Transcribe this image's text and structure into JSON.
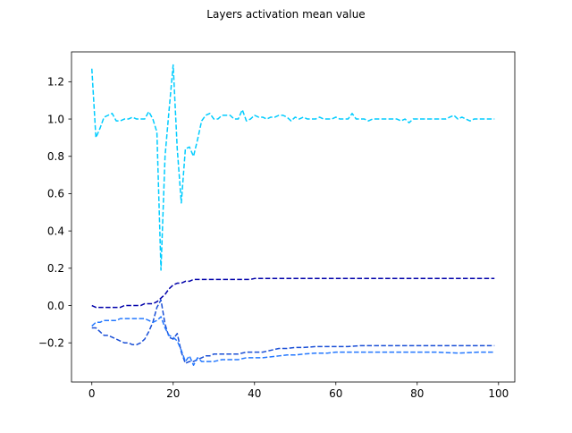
{
  "chart_data": {
    "type": "line",
    "title": "Layers activation mean value",
    "xlabel": "",
    "ylabel": "",
    "xlim": [
      -5,
      104
    ],
    "ylim": [
      -0.41,
      1.36
    ],
    "x_ticks": [
      0,
      20,
      40,
      60,
      80,
      100
    ],
    "x_tick_labels": [
      "0",
      "20",
      "40",
      "60",
      "80",
      "100"
    ],
    "y_ticks": [
      -0.2,
      0.0,
      0.2,
      0.4,
      0.6,
      0.8,
      1.0,
      1.2
    ],
    "y_tick_labels": [
      "−0.2",
      "0.0",
      "0.2",
      "0.4",
      "0.6",
      "0.8",
      "1.0",
      "1.2"
    ],
    "grid": false,
    "line_style": "dashed",
    "series": [
      {
        "color": "#00ccff",
        "points": [
          [
            0,
            1.27
          ],
          [
            1,
            0.9
          ],
          [
            2,
            0.95
          ],
          [
            3,
            1.01
          ],
          [
            4,
            1.02
          ],
          [
            5,
            1.03
          ],
          [
            6,
            0.99
          ],
          [
            7,
            0.99
          ],
          [
            8,
            1.0
          ],
          [
            9,
            1.0
          ],
          [
            10,
            1.01
          ],
          [
            11,
            1.0
          ],
          [
            12,
            1.0
          ],
          [
            13,
            1.0
          ],
          [
            14,
            1.04
          ],
          [
            15,
            1.0
          ],
          [
            16,
            0.93
          ],
          [
            17,
            0.19
          ],
          [
            18,
            0.8
          ],
          [
            19,
            1.05
          ],
          [
            20,
            1.29
          ],
          [
            21,
            0.84
          ],
          [
            22,
            0.55
          ],
          [
            23,
            0.84
          ],
          [
            24,
            0.85
          ],
          [
            25,
            0.8
          ],
          [
            26,
            0.89
          ],
          [
            27,
            0.99
          ],
          [
            28,
            1.02
          ],
          [
            29,
            1.03
          ],
          [
            30,
            1.0
          ],
          [
            31,
            1.0
          ],
          [
            32,
            1.02
          ],
          [
            33,
            1.02
          ],
          [
            34,
            1.02
          ],
          [
            35,
            1.0
          ],
          [
            36,
            1.0
          ],
          [
            37,
            1.05
          ],
          [
            38,
            0.99
          ],
          [
            39,
            1.0
          ],
          [
            40,
            1.02
          ],
          [
            41,
            1.01
          ],
          [
            42,
            1.01
          ],
          [
            43,
            1.0
          ],
          [
            44,
            1.01
          ],
          [
            45,
            1.01
          ],
          [
            46,
            1.02
          ],
          [
            47,
            1.02
          ],
          [
            48,
            1.01
          ],
          [
            49,
            0.99
          ],
          [
            50,
            1.01
          ],
          [
            51,
            1.0
          ],
          [
            52,
            1.01
          ],
          [
            53,
            1.0
          ],
          [
            54,
            1.0
          ],
          [
            55,
            1.0
          ],
          [
            56,
            1.01
          ],
          [
            57,
            1.0
          ],
          [
            58,
            1.0
          ],
          [
            59,
            1.0
          ],
          [
            60,
            1.01
          ],
          [
            61,
            1.0
          ],
          [
            62,
            1.0
          ],
          [
            63,
            1.0
          ],
          [
            64,
            1.03
          ],
          [
            65,
            1.0
          ],
          [
            66,
            1.0
          ],
          [
            67,
            1.0
          ],
          [
            68,
            0.99
          ],
          [
            69,
            1.0
          ],
          [
            70,
            1.0
          ],
          [
            71,
            1.0
          ],
          [
            72,
            1.0
          ],
          [
            73,
            1.0
          ],
          [
            74,
            1.0
          ],
          [
            75,
            1.0
          ],
          [
            76,
            0.99
          ],
          [
            77,
            1.0
          ],
          [
            78,
            0.98
          ],
          [
            79,
            1.0
          ],
          [
            80,
            1.0
          ],
          [
            81,
            1.0
          ],
          [
            82,
            1.0
          ],
          [
            83,
            1.0
          ],
          [
            84,
            1.0
          ],
          [
            85,
            1.0
          ],
          [
            86,
            1.0
          ],
          [
            87,
            1.0
          ],
          [
            88,
            1.01
          ],
          [
            89,
            1.02
          ],
          [
            90,
            1.0
          ],
          [
            91,
            1.01
          ],
          [
            92,
            1.0
          ],
          [
            93,
            0.99
          ],
          [
            94,
            1.0
          ],
          [
            95,
            1.0
          ],
          [
            96,
            1.0
          ],
          [
            97,
            1.0
          ],
          [
            98,
            1.0
          ],
          [
            99,
            1.0
          ]
        ]
      },
      {
        "color": "#0000aa",
        "points": [
          [
            0,
            0.0
          ],
          [
            1,
            -0.01
          ],
          [
            2,
            -0.01
          ],
          [
            3,
            -0.01
          ],
          [
            4,
            -0.01
          ],
          [
            5,
            -0.01
          ],
          [
            6,
            -0.01
          ],
          [
            7,
            -0.01
          ],
          [
            8,
            0.0
          ],
          [
            9,
            0.0
          ],
          [
            10,
            0.0
          ],
          [
            11,
            0.0
          ],
          [
            12,
            0.0
          ],
          [
            13,
            0.01
          ],
          [
            14,
            0.01
          ],
          [
            15,
            0.01
          ],
          [
            16,
            0.02
          ],
          [
            17,
            0.04
          ],
          [
            18,
            0.06
          ],
          [
            19,
            0.09
          ],
          [
            20,
            0.11
          ],
          [
            21,
            0.12
          ],
          [
            22,
            0.12
          ],
          [
            23,
            0.13
          ],
          [
            24,
            0.13
          ],
          [
            25,
            0.14
          ],
          [
            26,
            0.14
          ],
          [
            27,
            0.14
          ],
          [
            28,
            0.14
          ],
          [
            29,
            0.14
          ],
          [
            30,
            0.14
          ],
          [
            31,
            0.14
          ],
          [
            32,
            0.14
          ],
          [
            33,
            0.14
          ],
          [
            34,
            0.14
          ],
          [
            35,
            0.14
          ],
          [
            36,
            0.14
          ],
          [
            37,
            0.14
          ],
          [
            38,
            0.14
          ],
          [
            39,
            0.14
          ],
          [
            40,
            0.145
          ],
          [
            45,
            0.145
          ],
          [
            50,
            0.145
          ],
          [
            55,
            0.145
          ],
          [
            60,
            0.145
          ],
          [
            65,
            0.145
          ],
          [
            70,
            0.145
          ],
          [
            75,
            0.145
          ],
          [
            80,
            0.145
          ],
          [
            85,
            0.145
          ],
          [
            90,
            0.145
          ],
          [
            95,
            0.145
          ],
          [
            99,
            0.145
          ]
        ]
      },
      {
        "color": "#1a4fd6",
        "points": [
          [
            0,
            -0.12
          ],
          [
            1,
            -0.12
          ],
          [
            2,
            -0.14
          ],
          [
            3,
            -0.16
          ],
          [
            4,
            -0.16
          ],
          [
            5,
            -0.17
          ],
          [
            6,
            -0.18
          ],
          [
            7,
            -0.19
          ],
          [
            8,
            -0.2
          ],
          [
            9,
            -0.2
          ],
          [
            10,
            -0.21
          ],
          [
            11,
            -0.21
          ],
          [
            12,
            -0.2
          ],
          [
            13,
            -0.18
          ],
          [
            14,
            -0.14
          ],
          [
            15,
            -0.09
          ],
          [
            16,
            -0.01
          ],
          [
            17,
            0.03
          ],
          [
            18,
            -0.1
          ],
          [
            19,
            -0.17
          ],
          [
            20,
            -0.18
          ],
          [
            21,
            -0.15
          ],
          [
            22,
            -0.25
          ],
          [
            23,
            -0.31
          ],
          [
            24,
            -0.3
          ],
          [
            25,
            -0.3
          ],
          [
            26,
            -0.29
          ],
          [
            27,
            -0.28
          ],
          [
            28,
            -0.27
          ],
          [
            29,
            -0.27
          ],
          [
            30,
            -0.26
          ],
          [
            32,
            -0.26
          ],
          [
            34,
            -0.26
          ],
          [
            36,
            -0.26
          ],
          [
            38,
            -0.25
          ],
          [
            40,
            -0.25
          ],
          [
            42,
            -0.25
          ],
          [
            44,
            -0.24
          ],
          [
            46,
            -0.23
          ],
          [
            48,
            -0.23
          ],
          [
            50,
            -0.225
          ],
          [
            52,
            -0.225
          ],
          [
            55,
            -0.22
          ],
          [
            58,
            -0.22
          ],
          [
            60,
            -0.22
          ],
          [
            63,
            -0.22
          ],
          [
            66,
            -0.215
          ],
          [
            70,
            -0.215
          ],
          [
            75,
            -0.215
          ],
          [
            80,
            -0.215
          ],
          [
            85,
            -0.215
          ],
          [
            90,
            -0.215
          ],
          [
            95,
            -0.215
          ],
          [
            99,
            -0.215
          ]
        ]
      },
      {
        "color": "#2277ff",
        "points": [
          [
            0,
            -0.11
          ],
          [
            1,
            -0.09
          ],
          [
            2,
            -0.09
          ],
          [
            3,
            -0.08
          ],
          [
            4,
            -0.08
          ],
          [
            5,
            -0.08
          ],
          [
            6,
            -0.08
          ],
          [
            7,
            -0.07
          ],
          [
            8,
            -0.07
          ],
          [
            9,
            -0.07
          ],
          [
            10,
            -0.07
          ],
          [
            11,
            -0.07
          ],
          [
            12,
            -0.07
          ],
          [
            13,
            -0.07
          ],
          [
            14,
            -0.08
          ],
          [
            15,
            -0.09
          ],
          [
            16,
            -0.08
          ],
          [
            17,
            -0.06
          ],
          [
            18,
            -0.12
          ],
          [
            19,
            -0.16
          ],
          [
            20,
            -0.17
          ],
          [
            21,
            -0.19
          ],
          [
            22,
            -0.24
          ],
          [
            23,
            -0.3
          ],
          [
            24,
            -0.27
          ],
          [
            25,
            -0.32
          ],
          [
            26,
            -0.28
          ],
          [
            27,
            -0.3
          ],
          [
            28,
            -0.3
          ],
          [
            29,
            -0.3
          ],
          [
            30,
            -0.3
          ],
          [
            32,
            -0.29
          ],
          [
            34,
            -0.29
          ],
          [
            36,
            -0.29
          ],
          [
            38,
            -0.28
          ],
          [
            40,
            -0.28
          ],
          [
            42,
            -0.28
          ],
          [
            44,
            -0.275
          ],
          [
            46,
            -0.27
          ],
          [
            48,
            -0.265
          ],
          [
            50,
            -0.265
          ],
          [
            52,
            -0.26
          ],
          [
            55,
            -0.255
          ],
          [
            58,
            -0.255
          ],
          [
            60,
            -0.25
          ],
          [
            63,
            -0.25
          ],
          [
            66,
            -0.25
          ],
          [
            70,
            -0.25
          ],
          [
            75,
            -0.25
          ],
          [
            80,
            -0.25
          ],
          [
            85,
            -0.25
          ],
          [
            90,
            -0.255
          ],
          [
            95,
            -0.25
          ],
          [
            99,
            -0.25
          ]
        ]
      }
    ]
  }
}
